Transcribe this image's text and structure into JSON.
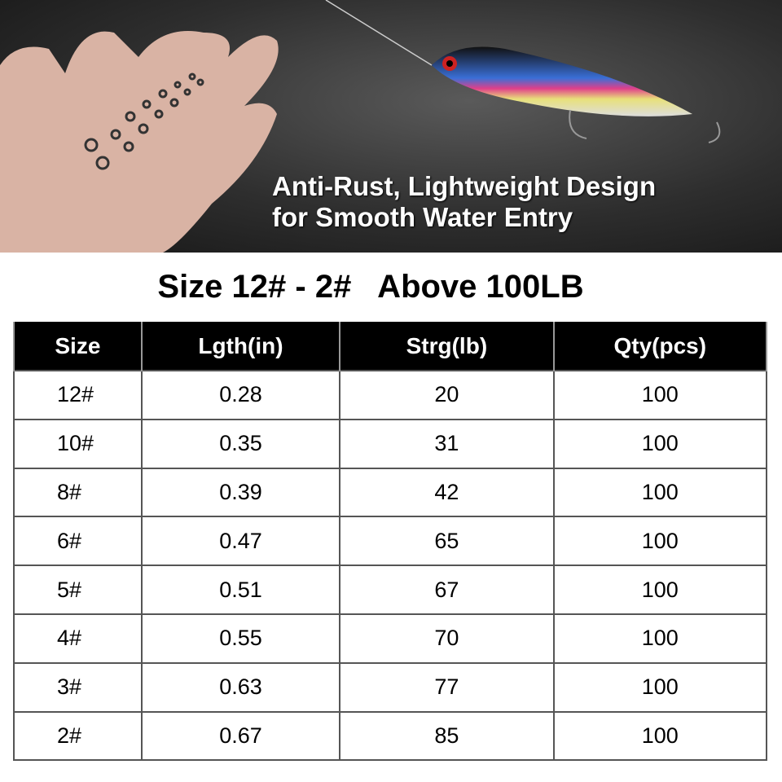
{
  "hero": {
    "caption_line1": "Anti-Rust, Lightweight Design",
    "caption_line2": "for Smooth Water Entry"
  },
  "title": "Size 12# - 2#   Above 100LB",
  "table": {
    "headers": [
      "Size",
      "Lgth(in)",
      "Strg(lb)",
      "Qty(pcs)"
    ],
    "rows": [
      [
        "12#",
        "0.28",
        "20",
        "100"
      ],
      [
        "10#",
        "0.35",
        "31",
        "100"
      ],
      [
        "8#",
        "0.39",
        "42",
        "100"
      ],
      [
        "6#",
        "0.47",
        "65",
        "100"
      ],
      [
        "5#",
        "0.51",
        "67",
        "100"
      ],
      [
        "4#",
        "0.55",
        "70",
        "100"
      ],
      [
        "3#",
        "0.63",
        "77",
        "100"
      ],
      [
        "2#",
        "0.67",
        "85",
        "100"
      ]
    ]
  }
}
